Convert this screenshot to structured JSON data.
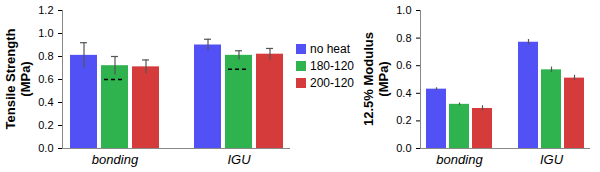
{
  "chart_data": [
    {
      "type": "bar",
      "ylabel": "Tensile Strength\n(MPa)",
      "categories": [
        "bonding",
        "IGU"
      ],
      "series": [
        {
          "name": "no heat",
          "color": "#5151f5",
          "values": [
            0.81,
            0.9
          ],
          "error": [
            0.11,
            0.05
          ]
        },
        {
          "name": "180-120",
          "color": "#2eb34e",
          "values": [
            0.72,
            0.81
          ],
          "error": [
            0.08,
            0.04
          ],
          "dashed_line": [
            0.6,
            0.69
          ]
        },
        {
          "name": "200-120",
          "color": "#d63b3b",
          "values": [
            0.71,
            0.82
          ],
          "error": [
            0.06,
            0.05
          ]
        }
      ],
      "ylim": [
        0,
        1.2
      ],
      "yticks": [
        {
          "value": 0,
          "label": "0.0"
        },
        {
          "value": 0.2,
          "label": "0.2"
        },
        {
          "value": 0.4,
          "label": "0.4"
        },
        {
          "value": 0.6,
          "label": "0.6"
        },
        {
          "value": 0.8,
          "label": "0.8"
        },
        {
          "value": 1,
          "label": "1.0"
        },
        {
          "value": 1.2,
          "label": "1.2"
        }
      ],
      "legend": "right"
    },
    {
      "type": "bar",
      "ylabel": "12.5% Modulus\n(MPa)",
      "categories": [
        "bonding",
        "IGU"
      ],
      "series": [
        {
          "name": "no heat",
          "color": "#5151f5",
          "values": [
            0.43,
            0.77
          ],
          "error": [
            0.01,
            0.02
          ]
        },
        {
          "name": "180-120",
          "color": "#2eb34e",
          "values": [
            0.32,
            0.57
          ],
          "error": [
            0.01,
            0.02
          ]
        },
        {
          "name": "200-120",
          "color": "#d63b3b",
          "values": [
            0.29,
            0.51
          ],
          "error": [
            0.02,
            0.02
          ]
        }
      ],
      "ylim": [
        0,
        1.0
      ],
      "yticks": [
        {
          "value": 0,
          "label": "0.0"
        },
        {
          "value": 0.2,
          "label": "0.2"
        },
        {
          "value": 0.4,
          "label": "0.4"
        },
        {
          "value": 0.6,
          "label": "0.6"
        },
        {
          "value": 0.8,
          "label": "0.8"
        },
        {
          "value": 1,
          "label": "1.0"
        }
      ]
    }
  ]
}
